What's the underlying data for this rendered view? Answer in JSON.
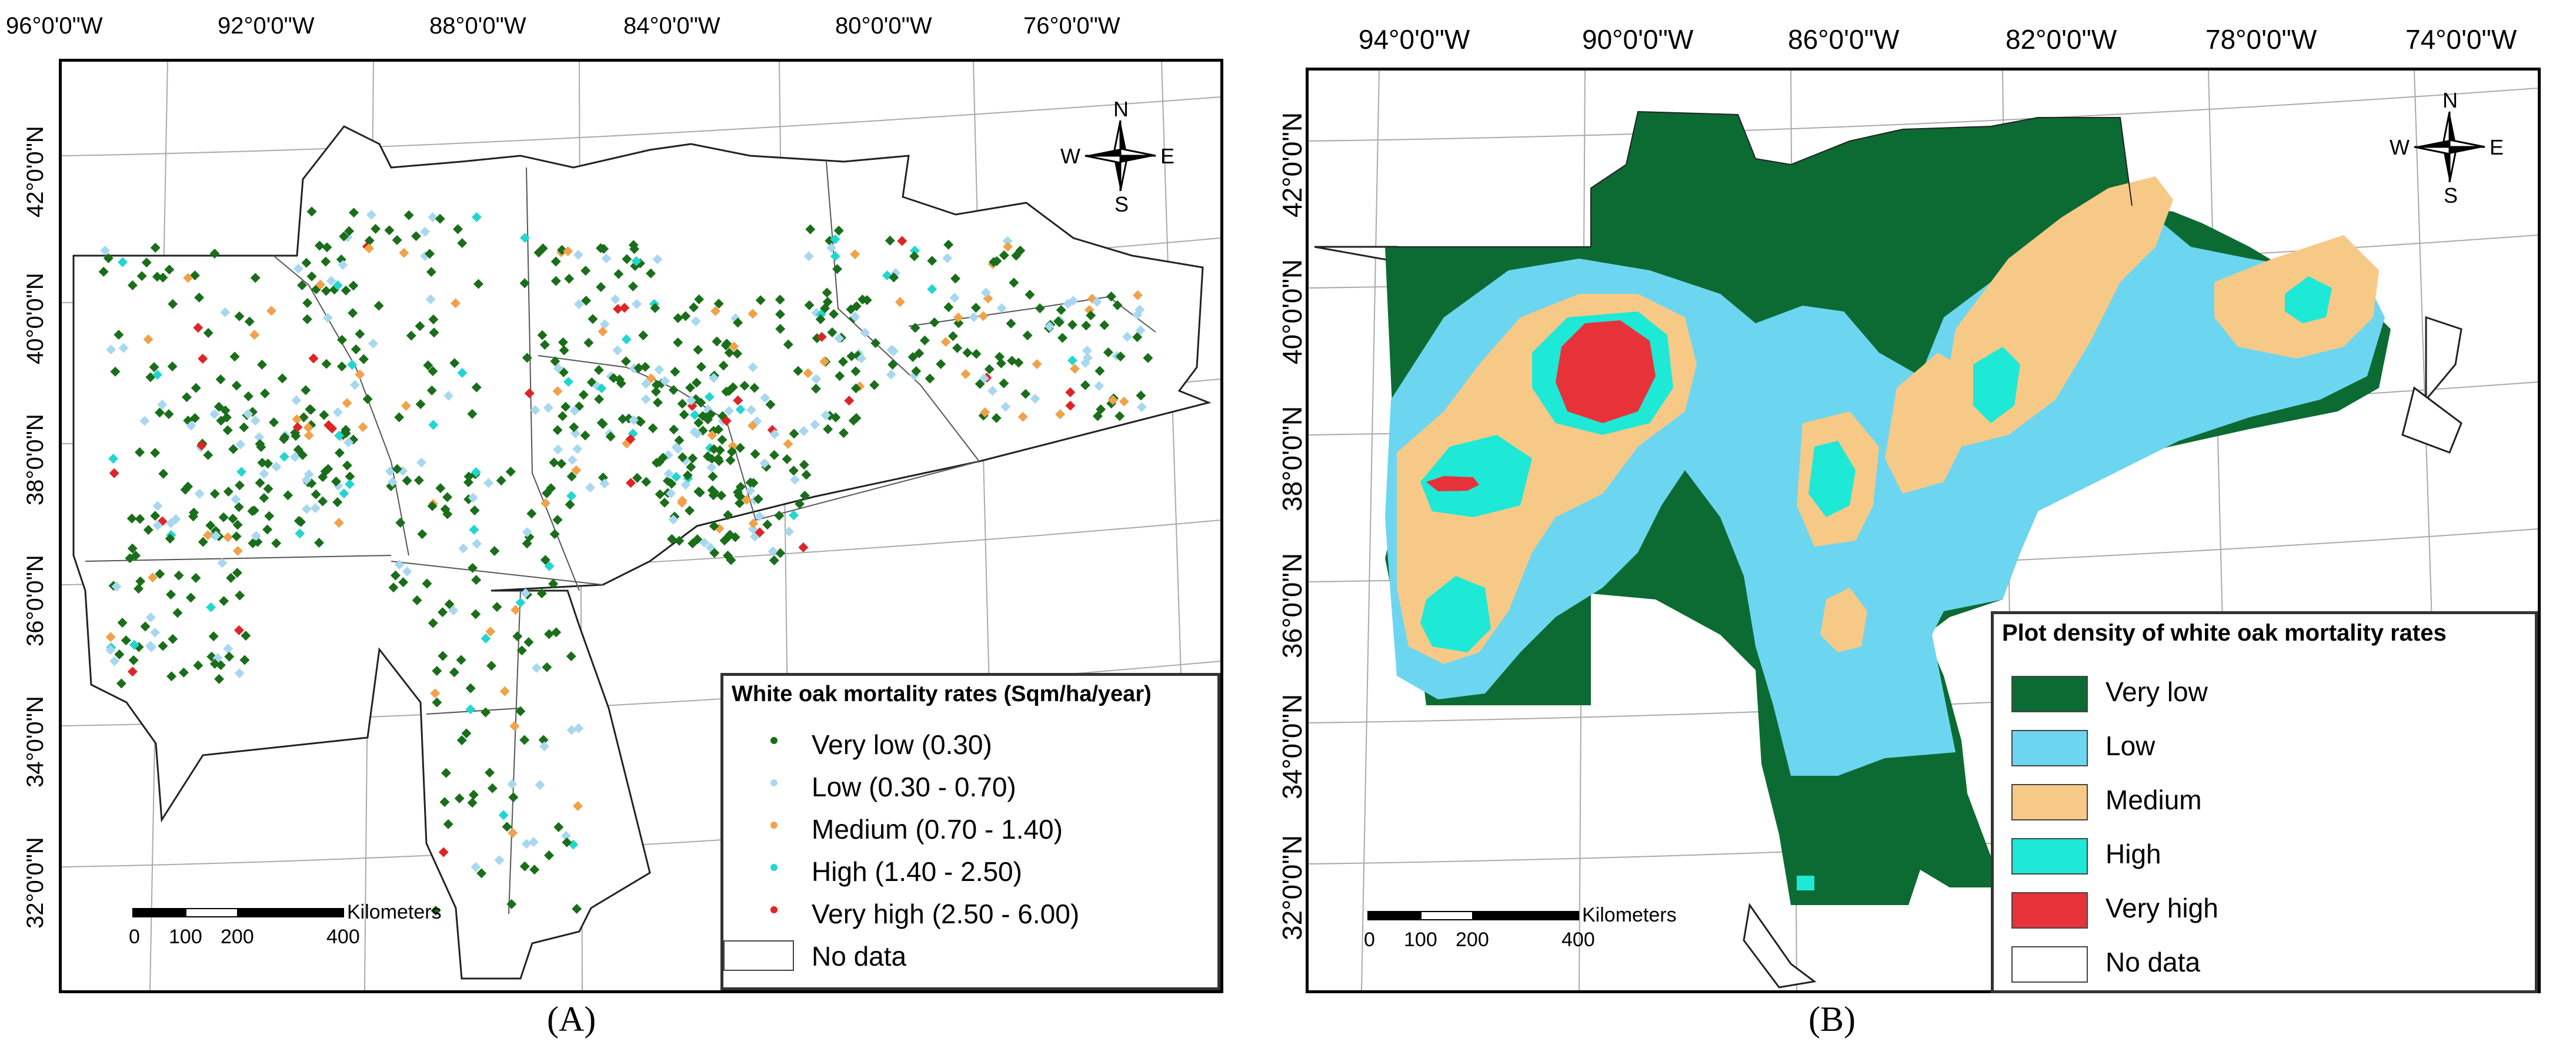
{
  "panels": [
    {
      "caption": "(A)",
      "x_ticks": [
        "96°0'0\"W",
        "92°0'0\"W",
        "88°0'0\"W",
        "84°0'0\"W",
        "80°0'0\"W",
        "76°0'0\"W"
      ],
      "y_ticks": [
        "42°0'0\"N",
        "40°0'0\"N",
        "38°0'0\"N",
        "36°0'0\"N",
        "34°0'0\"N",
        "32°0'0\"N"
      ],
      "north_arrow": {
        "n": "N",
        "s": "S",
        "e": "E",
        "w": "W"
      },
      "scale_bar": {
        "unit": "Kilometers",
        "labels": [
          "0",
          "100",
          "200",
          "400"
        ]
      },
      "legend": {
        "title": "White oak mortality rates (Sqm/ha/year)",
        "items": [
          {
            "label": "Very low (0.30)",
            "color": "#1a6e1a",
            "symbol": "dot"
          },
          {
            "label": "Low (0.30 - 0.70)",
            "color": "#a8d8f0",
            "symbol": "dot"
          },
          {
            "label": "Medium (0.70 - 1.40)",
            "color": "#f0a24a",
            "symbol": "dot"
          },
          {
            "label": "High (1.40 - 2.50)",
            "color": "#22d6d0",
            "symbol": "dot"
          },
          {
            "label": "Very high (2.50 - 6.00)",
            "color": "#e02424",
            "symbol": "dot"
          },
          {
            "label": "No data",
            "color": "#ffffff",
            "symbol": "box"
          }
        ]
      }
    },
    {
      "caption": "(B)",
      "x_ticks": [
        "94°0'0\"W",
        "90°0'0\"W",
        "86°0'0\"W",
        "82°0'0\"W",
        "78°0'0\"W",
        "74°0'0\"W"
      ],
      "y_ticks": [
        "42°0'0\"N",
        "40°0'0\"N",
        "38°0'0\"N",
        "36°0'0\"N",
        "34°0'0\"N",
        "32°0'0\"N"
      ],
      "north_arrow": {
        "n": "N",
        "s": "S",
        "e": "E",
        "w": "W"
      },
      "scale_bar": {
        "unit": "Kilometers",
        "labels": [
          "0",
          "100",
          "200",
          "400"
        ]
      },
      "legend": {
        "title": "Plot density of white oak mortality rates",
        "items": [
          {
            "label": "Very low",
            "color": "#0b6b32",
            "symbol": "box"
          },
          {
            "label": "Low",
            "color": "#6cd6f0",
            "symbol": "box"
          },
          {
            "label": "Medium",
            "color": "#f7c987",
            "symbol": "box"
          },
          {
            "label": "High",
            "color": "#1de9d6",
            "symbol": "box"
          },
          {
            "label": "Very high",
            "color": "#e8323a",
            "symbol": "box"
          },
          {
            "label": "No data",
            "color": "#ffffff",
            "symbol": "box"
          }
        ]
      }
    }
  ]
}
